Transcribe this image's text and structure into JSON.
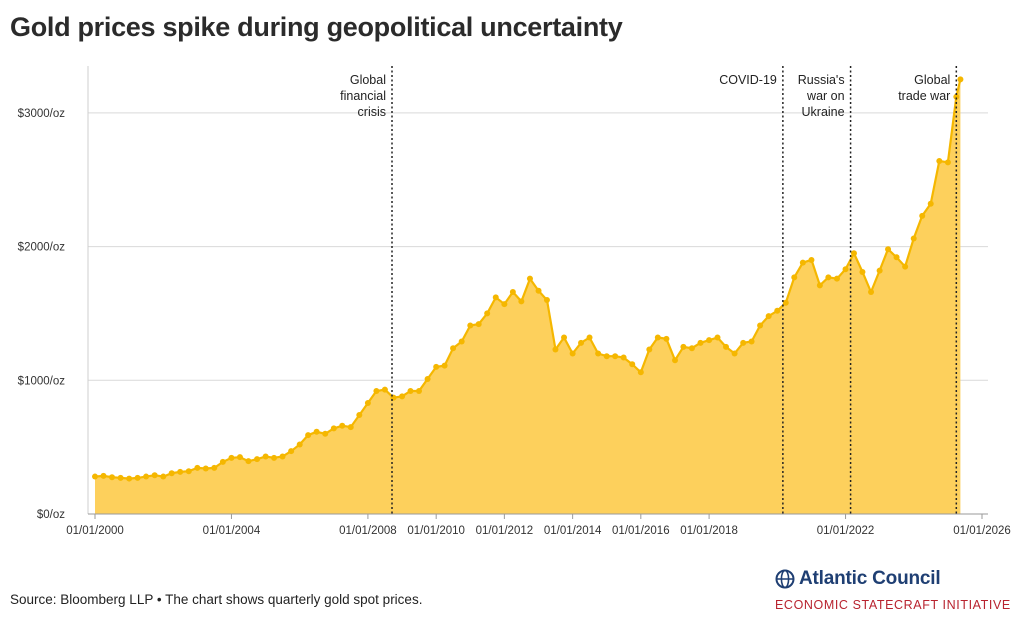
{
  "title": "Gold prices spike during geopolitical uncertainty",
  "source": "Source: Bloomberg LLP • The chart shows quarterly gold spot prices.",
  "brand": {
    "name": "Atlantic Council",
    "subtitle": "ECONOMIC STATECRAFT INITIATIVE",
    "logo_icon": "globe-icon",
    "name_color": "#1f3f73",
    "subtitle_color": "#b8232f"
  },
  "colors": {
    "area": "#fdd05c",
    "line": "#f5b700",
    "grid": "#d9d9d9"
  },
  "chart_data": {
    "type": "area",
    "title": "Gold prices spike during geopolitical uncertainty",
    "xlabel": "",
    "ylabel": "",
    "ylim": [
      0,
      3500
    ],
    "xlim": [
      "2000-01-01",
      "2026-01-01"
    ],
    "grid": true,
    "y_ticks": [
      {
        "value": 0,
        "label": "$0/oz"
      },
      {
        "value": 1000,
        "label": "$1000/oz"
      },
      {
        "value": 2000,
        "label": "$2000/oz"
      },
      {
        "value": 3000,
        "label": "$3000/oz"
      }
    ],
    "x_ticks": [
      {
        "date": "2000-01-01",
        "label": "01/01/2000"
      },
      {
        "date": "2004-01-01",
        "label": "01/01/2004"
      },
      {
        "date": "2008-01-01",
        "label": "01/01/2008"
      },
      {
        "date": "2010-01-01",
        "label": "01/01/2010"
      },
      {
        "date": "2012-01-01",
        "label": "01/01/2012"
      },
      {
        "date": "2014-01-01",
        "label": "01/01/2014"
      },
      {
        "date": "2016-01-01",
        "label": "01/01/2016"
      },
      {
        "date": "2018-01-01",
        "label": "01/01/2018"
      },
      {
        "date": "2022-01-01",
        "label": "01/01/2022"
      },
      {
        "date": "2026-01-01",
        "label": "01/01/2026"
      }
    ],
    "annotations": [
      {
        "date": "2008-09-15",
        "lines": [
          "Global",
          "financial",
          "crisis"
        ]
      },
      {
        "date": "2020-03-01",
        "lines": [
          "COVID-19"
        ]
      },
      {
        "date": "2022-02-24",
        "lines": [
          "Russia's",
          "war on",
          "Ukraine"
        ]
      },
      {
        "date": "2025-04-01",
        "lines": [
          "Global",
          "trade war"
        ]
      }
    ],
    "series": [
      {
        "x": [
          "2000-01-01",
          "2000-04-01",
          "2000-07-01",
          "2000-10-01",
          "2001-01-01",
          "2001-04-01",
          "2001-07-01",
          "2001-10-01",
          "2002-01-01",
          "2002-04-01",
          "2002-07-01",
          "2002-10-01",
          "2003-01-01",
          "2003-04-01",
          "2003-07-01",
          "2003-10-01",
          "2004-01-01",
          "2004-04-01",
          "2004-07-01",
          "2004-10-01",
          "2005-01-01",
          "2005-04-01",
          "2005-07-01",
          "2005-10-01",
          "2006-01-01",
          "2006-04-01",
          "2006-07-01",
          "2006-10-01",
          "2007-01-01",
          "2007-04-01",
          "2007-07-01",
          "2007-10-01",
          "2008-01-01",
          "2008-04-01",
          "2008-07-01",
          "2008-10-01",
          "2009-01-01",
          "2009-04-01",
          "2009-07-01",
          "2009-10-01",
          "2010-01-01",
          "2010-04-01",
          "2010-07-01",
          "2010-10-01",
          "2011-01-01",
          "2011-04-01",
          "2011-07-01",
          "2011-10-01",
          "2012-01-01",
          "2012-04-01",
          "2012-07-01",
          "2012-10-01",
          "2013-01-01",
          "2013-04-01",
          "2013-07-01",
          "2013-10-01",
          "2014-01-01",
          "2014-04-01",
          "2014-07-01",
          "2014-10-01",
          "2015-01-01",
          "2015-04-01",
          "2015-07-01",
          "2015-10-01",
          "2016-01-01",
          "2016-04-01",
          "2016-07-01",
          "2016-10-01",
          "2017-01-01",
          "2017-04-01",
          "2017-07-01",
          "2017-10-01",
          "2018-01-01",
          "2018-04-01",
          "2018-07-01",
          "2018-10-01",
          "2019-01-01",
          "2019-04-01",
          "2019-07-01",
          "2019-10-01",
          "2020-01-01",
          "2020-04-01",
          "2020-07-01",
          "2020-10-01",
          "2021-01-01",
          "2021-04-01",
          "2021-07-01",
          "2021-10-01",
          "2022-01-01",
          "2022-04-01",
          "2022-07-01",
          "2022-10-01",
          "2023-01-01",
          "2023-04-01",
          "2023-07-01",
          "2023-10-01",
          "2024-01-01",
          "2024-04-01",
          "2024-07-01",
          "2024-10-01",
          "2025-01-01",
          "2025-04-01",
          "2025-05-15"
        ],
        "values": [
          280,
          285,
          275,
          270,
          265,
          270,
          280,
          290,
          280,
          305,
          315,
          320,
          345,
          340,
          345,
          390,
          420,
          425,
          395,
          410,
          430,
          420,
          430,
          470,
          520,
          590,
          615,
          600,
          640,
          660,
          650,
          740,
          830,
          920,
          930,
          870,
          880,
          920,
          920,
          1010,
          1100,
          1110,
          1240,
          1290,
          1410,
          1420,
          1500,
          1620,
          1570,
          1660,
          1590,
          1760,
          1670,
          1600,
          1230,
          1320,
          1200,
          1280,
          1320,
          1200,
          1180,
          1180,
          1170,
          1120,
          1060,
          1230,
          1320,
          1310,
          1150,
          1250,
          1240,
          1280,
          1300,
          1320,
          1250,
          1200,
          1280,
          1290,
          1410,
          1480,
          1520,
          1580,
          1770,
          1880,
          1900,
          1710,
          1770,
          1760,
          1830,
          1950,
          1810,
          1660,
          1820,
          1980,
          1920,
          1850,
          2060,
          2230,
          2320,
          2640,
          2630,
          3120,
          3250
        ]
      }
    ]
  }
}
